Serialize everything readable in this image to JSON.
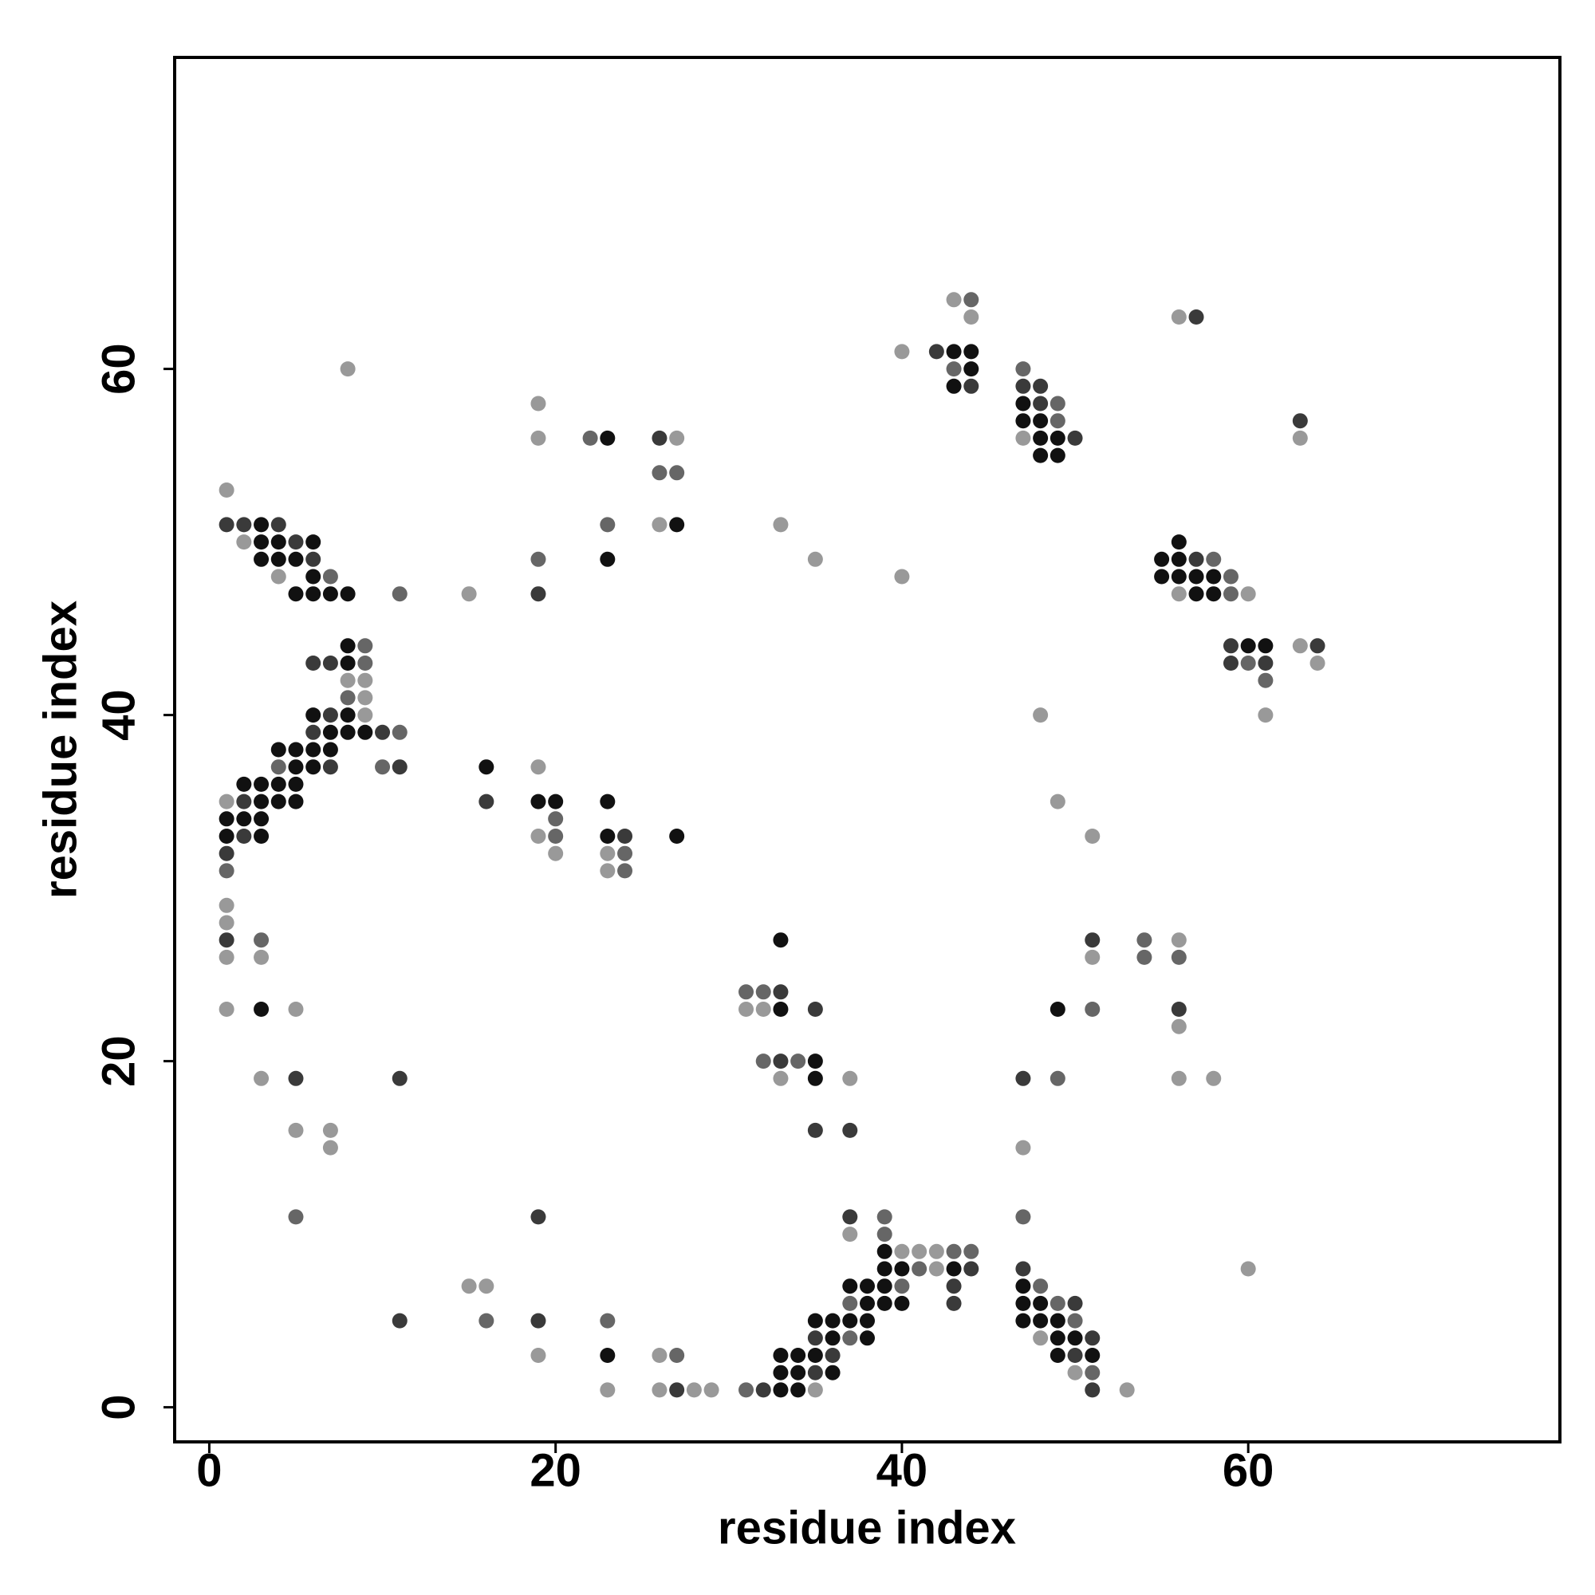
{
  "chart_data": {
    "type": "scatter",
    "xlabel": "residue index",
    "ylabel": "residue index",
    "xlim": [
      -2,
      78
    ],
    "ylim": [
      -2,
      78
    ],
    "xticks": [
      0,
      20,
      40,
      60
    ],
    "yticks": [
      0,
      20,
      40,
      60
    ],
    "series": [
      {
        "color": "#111111",
        "x": [
          33,
          34,
          33,
          34,
          36,
          23,
          33,
          34,
          35,
          49,
          51,
          36,
          38,
          49,
          50,
          35,
          36,
          37,
          38,
          47,
          48,
          49,
          38,
          39,
          40,
          47,
          48,
          37,
          38,
          39,
          47,
          39,
          40,
          43,
          39,
          35,
          35,
          3,
          33,
          49,
          33,
          1,
          3,
          23,
          27,
          1,
          2,
          3,
          3,
          4,
          5,
          19,
          20,
          23,
          2,
          3,
          4,
          5,
          5,
          6,
          16,
          4,
          5,
          6,
          7,
          7,
          8,
          9,
          6,
          8,
          8,
          8,
          60,
          61,
          5,
          6,
          7,
          8,
          57,
          58,
          6,
          55,
          56,
          57,
          58,
          3,
          4,
          5,
          23,
          55,
          56,
          3,
          4,
          6,
          56,
          3,
          27,
          48,
          49,
          23,
          48,
          49,
          47,
          48,
          47,
          43,
          44,
          43,
          44
        ],
        "y": [
          1,
          1,
          2,
          2,
          2,
          3,
          3,
          3,
          3,
          3,
          3,
          4,
          4,
          4,
          4,
          5,
          5,
          5,
          5,
          5,
          5,
          5,
          6,
          6,
          6,
          6,
          6,
          7,
          7,
          7,
          7,
          8,
          8,
          8,
          9,
          19,
          20,
          23,
          23,
          23,
          27,
          33,
          33,
          33,
          33,
          34,
          34,
          34,
          35,
          35,
          35,
          35,
          35,
          35,
          36,
          36,
          36,
          36,
          37,
          37,
          37,
          38,
          38,
          38,
          38,
          39,
          39,
          39,
          40,
          40,
          43,
          44,
          44,
          44,
          47,
          47,
          47,
          47,
          47,
          47,
          48,
          48,
          48,
          48,
          48,
          49,
          49,
          49,
          49,
          49,
          49,
          50,
          50,
          50,
          50,
          51,
          51,
          55,
          55,
          56,
          56,
          56,
          57,
          57,
          58,
          59,
          60,
          61,
          61
        ]
      },
      {
        "color": "#3a3a3a",
        "x": [
          27,
          32,
          51,
          35,
          36,
          50,
          35,
          51,
          11,
          19,
          43,
          50,
          43,
          44,
          47,
          19,
          37,
          35,
          37,
          5,
          11,
          47,
          33,
          35,
          56,
          33,
          1,
          51,
          1,
          2,
          24,
          2,
          16,
          7,
          11,
          6,
          10,
          7,
          6,
          7,
          59,
          61,
          59,
          64,
          19,
          6,
          57,
          5,
          1,
          2,
          4,
          26,
          50,
          63,
          48,
          47,
          48,
          44,
          42,
          57
        ],
        "y": [
          1,
          1,
          1,
          2,
          3,
          3,
          4,
          4,
          5,
          5,
          6,
          6,
          7,
          8,
          8,
          11,
          11,
          16,
          16,
          19,
          19,
          19,
          20,
          23,
          23,
          24,
          27,
          27,
          32,
          33,
          33,
          35,
          35,
          37,
          37,
          39,
          39,
          40,
          43,
          43,
          43,
          43,
          44,
          44,
          47,
          49,
          49,
          50,
          51,
          51,
          51,
          56,
          56,
          57,
          58,
          59,
          59,
          59,
          61,
          63
        ]
      },
      {
        "color": "#666666",
        "x": [
          31,
          51,
          27,
          37,
          16,
          23,
          50,
          37,
          49,
          40,
          48,
          41,
          43,
          44,
          39,
          5,
          39,
          47,
          49,
          32,
          34,
          51,
          31,
          32,
          54,
          56,
          3,
          54,
          1,
          24,
          24,
          20,
          20,
          4,
          10,
          11,
          8,
          61,
          9,
          60,
          9,
          11,
          59,
          7,
          59,
          19,
          58,
          23,
          26,
          27,
          22,
          49,
          49,
          47,
          43,
          44
        ],
        "y": [
          1,
          2,
          3,
          4,
          5,
          5,
          5,
          6,
          6,
          7,
          7,
          8,
          9,
          9,
          10,
          11,
          11,
          11,
          19,
          20,
          20,
          23,
          24,
          24,
          26,
          26,
          27,
          27,
          31,
          31,
          32,
          33,
          34,
          37,
          37,
          39,
          41,
          42,
          43,
          43,
          44,
          47,
          47,
          48,
          48,
          49,
          49,
          51,
          54,
          54,
          56,
          57,
          58,
          60,
          60,
          64
        ]
      },
      {
        "color": "#999999",
        "x": [
          23,
          26,
          28,
          29,
          35,
          53,
          50,
          19,
          26,
          48,
          15,
          16,
          42,
          60,
          40,
          41,
          42,
          37,
          7,
          47,
          5,
          7,
          3,
          33,
          37,
          56,
          58,
          56,
          1,
          5,
          31,
          32,
          1,
          3,
          51,
          56,
          1,
          1,
          23,
          20,
          23,
          19,
          51,
          1,
          49,
          19,
          9,
          48,
          61,
          9,
          8,
          9,
          64,
          63,
          15,
          56,
          60,
          4,
          40,
          35,
          2,
          26,
          33,
          1,
          19,
          27,
          47,
          63,
          19,
          8,
          40,
          44,
          56,
          43
        ],
        "y": [
          1,
          1,
          1,
          1,
          1,
          1,
          2,
          3,
          3,
          4,
          7,
          7,
          8,
          8,
          9,
          9,
          9,
          10,
          15,
          15,
          16,
          16,
          19,
          19,
          19,
          19,
          19,
          22,
          23,
          23,
          23,
          23,
          26,
          26,
          26,
          27,
          28,
          29,
          31,
          32,
          32,
          33,
          33,
          35,
          35,
          37,
          40,
          40,
          40,
          41,
          42,
          42,
          43,
          44,
          47,
          47,
          47,
          48,
          48,
          49,
          50,
          51,
          51,
          53,
          56,
          56,
          56,
          56,
          58,
          60,
          61,
          63,
          63,
          64
        ]
      }
    ]
  }
}
